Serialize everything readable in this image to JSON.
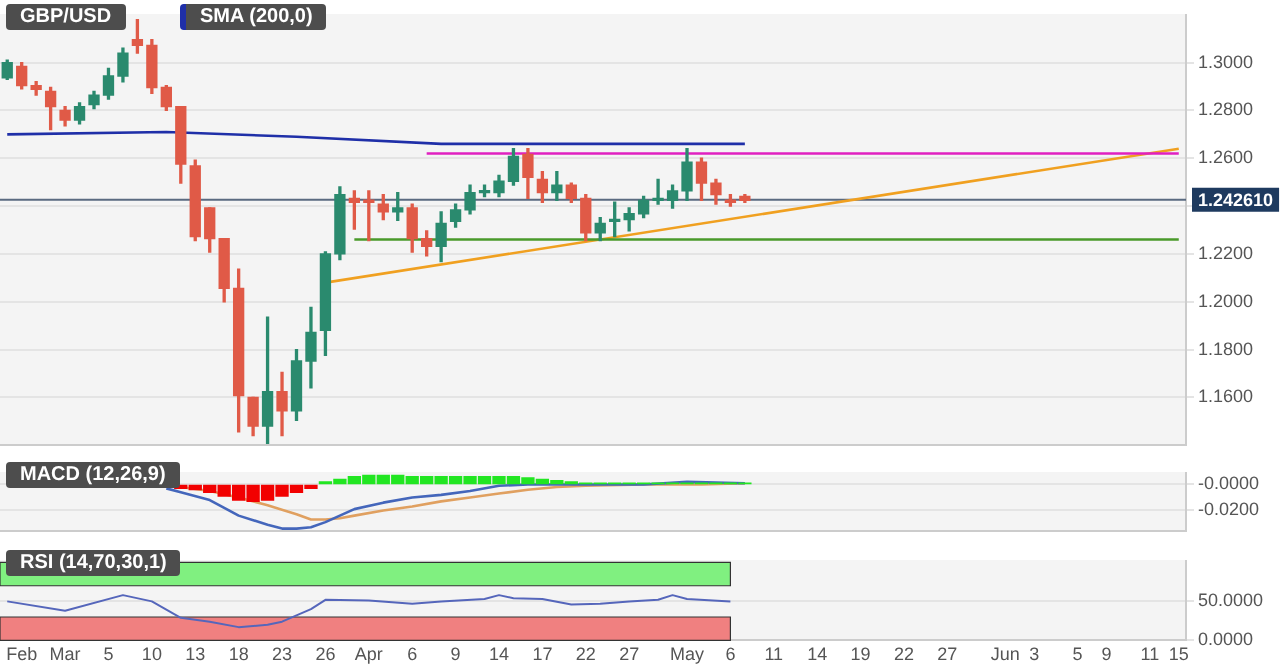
{
  "chart_data": [
    {
      "type": "candlestick",
      "title": "GBP/USD",
      "legend": "top left",
      "grid": "y",
      "tick_labels": "y",
      "categories": [
        null,
        null,
        null,
        null,
        null,
        null,
        null,
        null,
        null,
        null,
        null,
        null,
        null,
        null,
        null,
        null,
        null,
        null,
        null,
        null,
        null,
        null,
        null,
        null,
        null,
        null,
        null,
        null,
        null,
        null,
        null,
        null,
        null,
        null,
        null,
        null,
        null,
        null,
        null,
        null,
        null,
        null,
        null,
        null,
        null,
        null,
        null,
        null,
        null,
        null,
        null,
        null,
        null,
        null,
        null,
        null,
        null,
        null,
        null,
        null,
        null,
        null,
        null,
        null,
        null,
        null,
        null,
        null,
        null,
        null,
        null,
        null,
        null,
        null,
        null,
        null,
        null,
        null,
        null,
        null,
        null,
        null
      ],
      "ohlc": [
        [
          1.2936,
          1.301,
          1.293,
          1.3
        ],
        [
          1.2984,
          1.3,
          1.289,
          1.2904
        ],
        [
          1.2904,
          1.292,
          1.2864,
          1.2888
        ],
        [
          1.288,
          1.2896,
          1.272,
          1.2816
        ],
        [
          1.28,
          1.2816,
          1.2736,
          1.276
        ],
        [
          1.276,
          1.2832,
          1.2744,
          1.2816
        ],
        [
          1.2824,
          1.288,
          1.2808,
          1.2864
        ],
        [
          1.2864,
          1.2976,
          1.2848,
          1.2944
        ],
        [
          1.2944,
          1.306,
          1.292,
          1.304
        ],
        [
          1.3096,
          1.318,
          1.304,
          1.3072
        ],
        [
          1.3072,
          1.3096,
          1.2872,
          1.2896
        ],
        [
          1.2896,
          1.2904,
          1.28,
          1.2816
        ],
        [
          1.2816,
          1.2816,
          1.2496,
          1.2576
        ],
        [
          1.2568,
          1.2592,
          1.2256,
          1.2272
        ],
        [
          1.2392,
          1.2392,
          1.2208,
          1.2264
        ],
        [
          1.2264,
          1.2264,
          1.2,
          1.2056
        ],
        [
          1.2056,
          1.2136,
          1.1456,
          1.1608
        ],
        [
          1.16,
          1.16,
          1.144,
          1.148
        ],
        [
          1.148,
          1.1936,
          1.1408,
          1.1624
        ],
        [
          1.1624,
          1.1704,
          1.144,
          1.1544
        ],
        [
          1.1544,
          1.18,
          1.1504,
          1.1752
        ],
        [
          1.1752,
          1.1976,
          1.164,
          1.1872
        ],
        [
          1.188,
          1.2208,
          1.1776,
          1.22
        ],
        [
          1.22,
          1.248,
          1.2176,
          1.2448
        ],
        [
          1.2432,
          1.2464,
          1.2304,
          1.2416
        ],
        [
          1.2424,
          1.2464,
          1.2256,
          1.2416
        ],
        [
          1.2408,
          1.2448,
          1.2344,
          1.2376
        ],
        [
          1.2376,
          1.2456,
          1.234,
          1.2392
        ],
        [
          1.2392,
          1.2408,
          1.2208,
          1.2264
        ],
        [
          1.2264,
          1.2296,
          1.2192,
          1.2232
        ],
        [
          1.2232,
          1.2376,
          1.2168,
          1.2328
        ],
        [
          1.2336,
          1.2408,
          1.2312,
          1.2384
        ],
        [
          1.2384,
          1.2488,
          1.2368,
          1.2456
        ],
        [
          1.2456,
          1.2488,
          1.244,
          1.2464
        ],
        [
          1.2456,
          1.2528,
          1.244,
          1.2504
        ],
        [
          1.2504,
          1.264,
          1.2488,
          1.2608
        ],
        [
          1.2616,
          1.264,
          1.2432,
          1.252
        ],
        [
          1.2512,
          1.2544,
          1.2416,
          1.2456
        ],
        [
          1.2456,
          1.2544,
          1.2424,
          1.2488
        ],
        [
          1.2488,
          1.2496,
          1.2416,
          1.2432
        ],
        [
          1.2432,
          1.2448,
          1.2256,
          1.2288
        ],
        [
          1.2288,
          1.2352,
          1.2256,
          1.2328
        ],
        [
          1.2336,
          1.2416,
          1.2272,
          1.2344
        ],
        [
          1.2344,
          1.2392,
          1.2296,
          1.2368
        ],
        [
          1.2368,
          1.244,
          1.2352,
          1.2424
        ],
        [
          1.2424,
          1.2512,
          1.2408,
          1.2432
        ],
        [
          1.2424,
          1.2488,
          1.2392,
          1.2464
        ],
        [
          1.2464,
          1.264,
          1.2424,
          1.2584
        ],
        [
          1.2584,
          1.26,
          1.2424,
          1.2496
        ],
        [
          1.2496,
          1.2512,
          1.2408,
          1.2448
        ],
        [
          1.2424,
          1.2448,
          1.24,
          1.2416
        ],
        [
          1.244,
          1.2448,
          1.2416,
          1.2424
        ],
        null,
        null,
        null,
        null,
        null,
        null,
        null,
        null,
        null,
        null,
        null,
        null,
        null,
        null,
        null,
        null,
        null,
        null,
        null,
        null,
        null,
        null,
        null,
        null,
        null,
        null,
        null,
        null,
        null,
        null
      ],
      "series": [
        {
          "type": "line",
          "name": "SMA (200,0)",
          "color": "#1f2fa8",
          "values": [
            1.27,
            null,
            null,
            null,
            null,
            null,
            null,
            null,
            null,
            null,
            null,
            1.271,
            null,
            null,
            null,
            null,
            null,
            null,
            null,
            null,
            1.269,
            null,
            null,
            null,
            null,
            null,
            null,
            null,
            null,
            null,
            1.266,
            null,
            null,
            null,
            null,
            null,
            null,
            null,
            null,
            null,
            null,
            null,
            null,
            null,
            null,
            null,
            null,
            null,
            null,
            null,
            null,
            1.266,
            null,
            null,
            null,
            null,
            null,
            null,
            null,
            null,
            null,
            null,
            null,
            null,
            null,
            null,
            null,
            null,
            null,
            null,
            null,
            null,
            null,
            null,
            null,
            null,
            null,
            null,
            null,
            null,
            null,
            null
          ]
        },
        {
          "type": "line",
          "color": "#e020c0",
          "values": [
            null,
            null,
            null,
            null,
            null,
            null,
            null,
            null,
            null,
            null,
            null,
            null,
            null,
            null,
            null,
            null,
            null,
            null,
            null,
            null,
            null,
            null,
            null,
            null,
            null,
            null,
            null,
            null,
            null,
            1.262,
            null,
            null,
            null,
            null,
            null,
            null,
            null,
            null,
            null,
            null,
            null,
            null,
            null,
            null,
            null,
            null,
            null,
            null,
            null,
            null,
            null,
            null,
            null,
            null,
            null,
            null,
            null,
            null,
            null,
            null,
            null,
            null,
            null,
            null,
            null,
            null,
            null,
            null,
            null,
            null,
            null,
            null,
            null,
            null,
            null,
            null,
            null,
            null,
            null,
            null,
            null,
            1.262
          ]
        },
        {
          "type": "line",
          "color": "#4a9a2a",
          "values": [
            null,
            null,
            null,
            null,
            null,
            null,
            null,
            null,
            null,
            null,
            null,
            null,
            null,
            null,
            null,
            null,
            null,
            null,
            null,
            null,
            null,
            null,
            null,
            null,
            1.226,
            null,
            null,
            null,
            null,
            null,
            null,
            null,
            null,
            null,
            null,
            null,
            null,
            null,
            null,
            null,
            null,
            null,
            null,
            null,
            null,
            null,
            null,
            null,
            null,
            null,
            null,
            null,
            null,
            null,
            null,
            null,
            null,
            null,
            null,
            null,
            null,
            null,
            null,
            null,
            null,
            null,
            null,
            null,
            null,
            null,
            null,
            null,
            null,
            null,
            null,
            null,
            null,
            null,
            null,
            null,
            null,
            1.226
          ]
        },
        {
          "type": "line",
          "color": "#f0a020",
          "values": [
            null,
            null,
            null,
            null,
            null,
            null,
            null,
            null,
            null,
            null,
            null,
            null,
            null,
            null,
            null,
            null,
            null,
            null,
            null,
            null,
            null,
            null,
            1.208,
            null,
            null,
            null,
            null,
            null,
            null,
            null,
            null,
            null,
            null,
            null,
            null,
            null,
            null,
            null,
            null,
            null,
            null,
            null,
            null,
            null,
            null,
            null,
            null,
            null,
            null,
            null,
            null,
            null,
            null,
            null,
            null,
            null,
            null,
            null,
            null,
            null,
            null,
            null,
            null,
            null,
            null,
            null,
            null,
            null,
            null,
            null,
            null,
            null,
            null,
            null,
            null,
            null,
            null,
            null,
            null,
            null,
            null,
            1.264
          ]
        }
      ],
      "ref_lines": [
        {
          "axis": "y",
          "value": 1.24261,
          "label": "1.242610",
          "color": "#5a6a80"
        }
      ],
      "ylim": [
        1.14,
        1.32
      ],
      "yticks": [
        {
          "value": 1.16,
          "label": "1.1600"
        },
        {
          "value": 1.18,
          "label": "1.1800"
        },
        {
          "value": 1.2,
          "label": "1.2000"
        },
        {
          "value": 1.22,
          "label": "1.2200"
        },
        {
          "value": 1.24,
          "label": null
        },
        {
          "value": 1.26,
          "label": "1.2600"
        },
        {
          "value": 1.28,
          "label": "1.2800"
        },
        {
          "value": 1.3,
          "label": "1.3000"
        }
      ]
    },
    {
      "type": "bar",
      "title": "MACD (12,26,9)",
      "grid": "y",
      "tick_labels": "y",
      "categories": [
        null,
        null,
        null,
        null,
        null,
        null,
        null,
        null,
        null,
        null,
        null,
        null,
        null,
        null,
        null,
        null,
        null,
        null,
        null,
        null,
        null,
        null,
        null,
        null,
        null,
        null,
        null,
        null,
        null,
        null,
        null,
        null,
        null,
        null,
        null,
        null,
        null,
        null,
        null,
        null,
        null,
        null,
        null,
        null,
        null,
        null,
        null,
        null,
        null,
        null,
        null,
        null,
        null,
        null,
        null,
        null,
        null,
        null,
        null,
        null,
        null,
        null,
        null,
        null,
        null,
        null,
        null,
        null,
        null,
        null,
        null,
        null,
        null,
        null,
        null,
        null,
        null,
        null,
        null,
        null,
        null,
        null
      ],
      "values": [
        null,
        null,
        null,
        null,
        null,
        null,
        null,
        null,
        null,
        null,
        null,
        null,
        -0.003,
        -0.004,
        -0.006,
        -0.009,
        -0.012,
        -0.013,
        -0.012,
        -0.009,
        -0.006,
        -0.003,
        0.002,
        0.004,
        0.006,
        0.007,
        0.007,
        0.007,
        0.006,
        0.006,
        0.006,
        0.006,
        0.006,
        0.006,
        0.006,
        0.006,
        0.005,
        0.004,
        0.003,
        0.002,
        0.001,
        0.001,
        0.001,
        0.001,
        0.001,
        0.001,
        0.001,
        0.001,
        0.001,
        0.001,
        0.001,
        0.001,
        null,
        null,
        null,
        null,
        null,
        null,
        null,
        null,
        null,
        null,
        null,
        null,
        null,
        null,
        null,
        null,
        null,
        null,
        null,
        null,
        null,
        null,
        null,
        null,
        null,
        null,
        null,
        null,
        null,
        null
      ],
      "colors": [
        "#22e622",
        "#22e622",
        "#22e622",
        "#22e622",
        "#22e622",
        "#22e622",
        "#22e622",
        "#22e622",
        "#22e622",
        "#22e622",
        "#22e622",
        "#22e622",
        "#f20000",
        "#f20000",
        "#f20000",
        "#f20000",
        "#f20000",
        "#f20000",
        "#f20000",
        "#f20000",
        "#f20000",
        "#f20000",
        "#22e622",
        "#22e622",
        "#22e622",
        "#22e622",
        "#22e622",
        "#22e622",
        "#22e622",
        "#22e622",
        "#22e622",
        "#22e622",
        "#22e622",
        "#22e622",
        "#22e622",
        "#22e622",
        "#22e622",
        "#22e622",
        "#22e622",
        "#22e622",
        "#22e622",
        "#22e622",
        "#22e622",
        "#22e622",
        "#22e622",
        "#22e622",
        "#22e622",
        "#22e622",
        "#22e622",
        "#22e622",
        "#22e622",
        "#22e622",
        "#22e622",
        "#22e622",
        "#22e622",
        "#22e622",
        "#22e622",
        "#22e622",
        "#22e622",
        "#22e622",
        "#22e622",
        "#22e622",
        "#22e622",
        "#22e622",
        "#22e622",
        "#22e622",
        "#22e622",
        "#22e622",
        "#22e622",
        "#22e622",
        "#22e622",
        "#22e622",
        "#22e622",
        "#22e622",
        "#22e622",
        "#22e622",
        "#22e622",
        "#22e622",
        "#22e622",
        "#22e622",
        "#22e622",
        "#22e622"
      ],
      "series": [
        {
          "type": "line",
          "color": "#4466bb",
          "values": [
            null,
            null,
            null,
            null,
            null,
            null,
            null,
            null,
            null,
            null,
            null,
            -0.003,
            -0.006,
            null,
            -0.012,
            null,
            -0.024,
            null,
            -0.031,
            -0.034,
            -0.034,
            -0.033,
            -0.029,
            null,
            -0.019,
            null,
            -0.014,
            null,
            -0.01,
            null,
            -0.008,
            null,
            -0.005,
            null,
            -0.001,
            null,
            0.0,
            null,
            null,
            null,
            0.0,
            null,
            null,
            null,
            0.0,
            null,
            null,
            0.002,
            null,
            null,
            null,
            0.001,
            null,
            null,
            null,
            null,
            null,
            null,
            null,
            null,
            null,
            null,
            null,
            null,
            null,
            null,
            null,
            null,
            null,
            null,
            null,
            null,
            null,
            null,
            null,
            null,
            null,
            null,
            null,
            null,
            null,
            null
          ]
        },
        {
          "type": "line",
          "color": "#e0a060",
          "values": [
            null,
            null,
            null,
            null,
            null,
            null,
            null,
            null,
            null,
            null,
            null,
            null,
            -0.002,
            null,
            -0.005,
            null,
            -0.01,
            null,
            -0.016,
            null,
            -0.023,
            -0.027,
            -0.027,
            -0.026,
            -0.024,
            null,
            -0.02,
            null,
            -0.017,
            null,
            -0.013,
            null,
            -0.01,
            null,
            -0.007,
            null,
            -0.004,
            null,
            -0.002,
            null,
            -0.001,
            null,
            null,
            null,
            0.0,
            null,
            null,
            null,
            0.0,
            null,
            null,
            0.001,
            null,
            null,
            null,
            null,
            null,
            null,
            null,
            null,
            null,
            null,
            null,
            null,
            null,
            null,
            null,
            null,
            null,
            null,
            null,
            null,
            null,
            null,
            null,
            null,
            null,
            null,
            null,
            null,
            null,
            null
          ]
        }
      ],
      "ylim": [
        -0.036,
        0.009
      ],
      "yticks": [
        {
          "value": 0,
          "label": "-0.0000"
        },
        {
          "value": -0.02,
          "label": "-0.0200"
        }
      ]
    },
    {
      "type": "line",
      "title": "RSI (14,70,30,1)",
      "grid": "y",
      "categories": [
        null,
        "Feb",
        null,
        null,
        "Mar",
        null,
        null,
        "5",
        null,
        null,
        "10",
        null,
        null,
        "13",
        null,
        null,
        "18",
        null,
        null,
        "23",
        null,
        null,
        "26",
        null,
        null,
        "Apr",
        null,
        null,
        "6",
        null,
        null,
        "9",
        null,
        null,
        "14",
        null,
        null,
        "17",
        null,
        null,
        "22",
        null,
        null,
        "27",
        null,
        null,
        null,
        "May",
        null,
        null,
        "6",
        null,
        null,
        "11",
        null,
        null,
        "14",
        null,
        null,
        "19",
        null,
        null,
        "22",
        null,
        null,
        "27",
        null,
        null,
        null,
        "Jun",
        null,
        "3",
        null,
        null,
        "5",
        null,
        "9",
        null,
        null,
        "11",
        null,
        "15"
      ],
      "values": [
        50,
        null,
        null,
        null,
        38,
        null,
        null,
        null,
        58,
        null,
        50,
        null,
        29,
        null,
        24,
        null,
        17,
        null,
        20,
        24,
        32,
        40,
        52,
        null,
        null,
        51,
        null,
        null,
        47,
        null,
        50,
        null,
        null,
        53,
        58,
        54,
        null,
        53,
        null,
        46,
        null,
        47,
        null,
        50,
        null,
        52,
        58,
        53,
        null,
        null,
        50,
        null,
        null,
        null,
        null,
        null,
        null,
        null,
        null,
        null,
        null,
        null,
        null,
        null,
        null,
        null,
        null,
        null,
        null,
        null,
        null,
        null,
        null,
        null,
        null,
        null,
        null,
        null,
        null,
        null,
        null,
        null
      ],
      "color": "#5566bb",
      "bands": [
        {
          "axis": "y",
          "from": 70,
          "to": 100,
          "color": "#80f080"
        },
        {
          "axis": "y",
          "from": 0,
          "to": 30,
          "color": "#f08080"
        }
      ],
      "ylim": [
        0,
        102
      ],
      "yticks": [
        {
          "value": 0,
          "label": "0.0000"
        },
        {
          "value": 50,
          "label": "50.0000"
        }
      ]
    }
  ]
}
